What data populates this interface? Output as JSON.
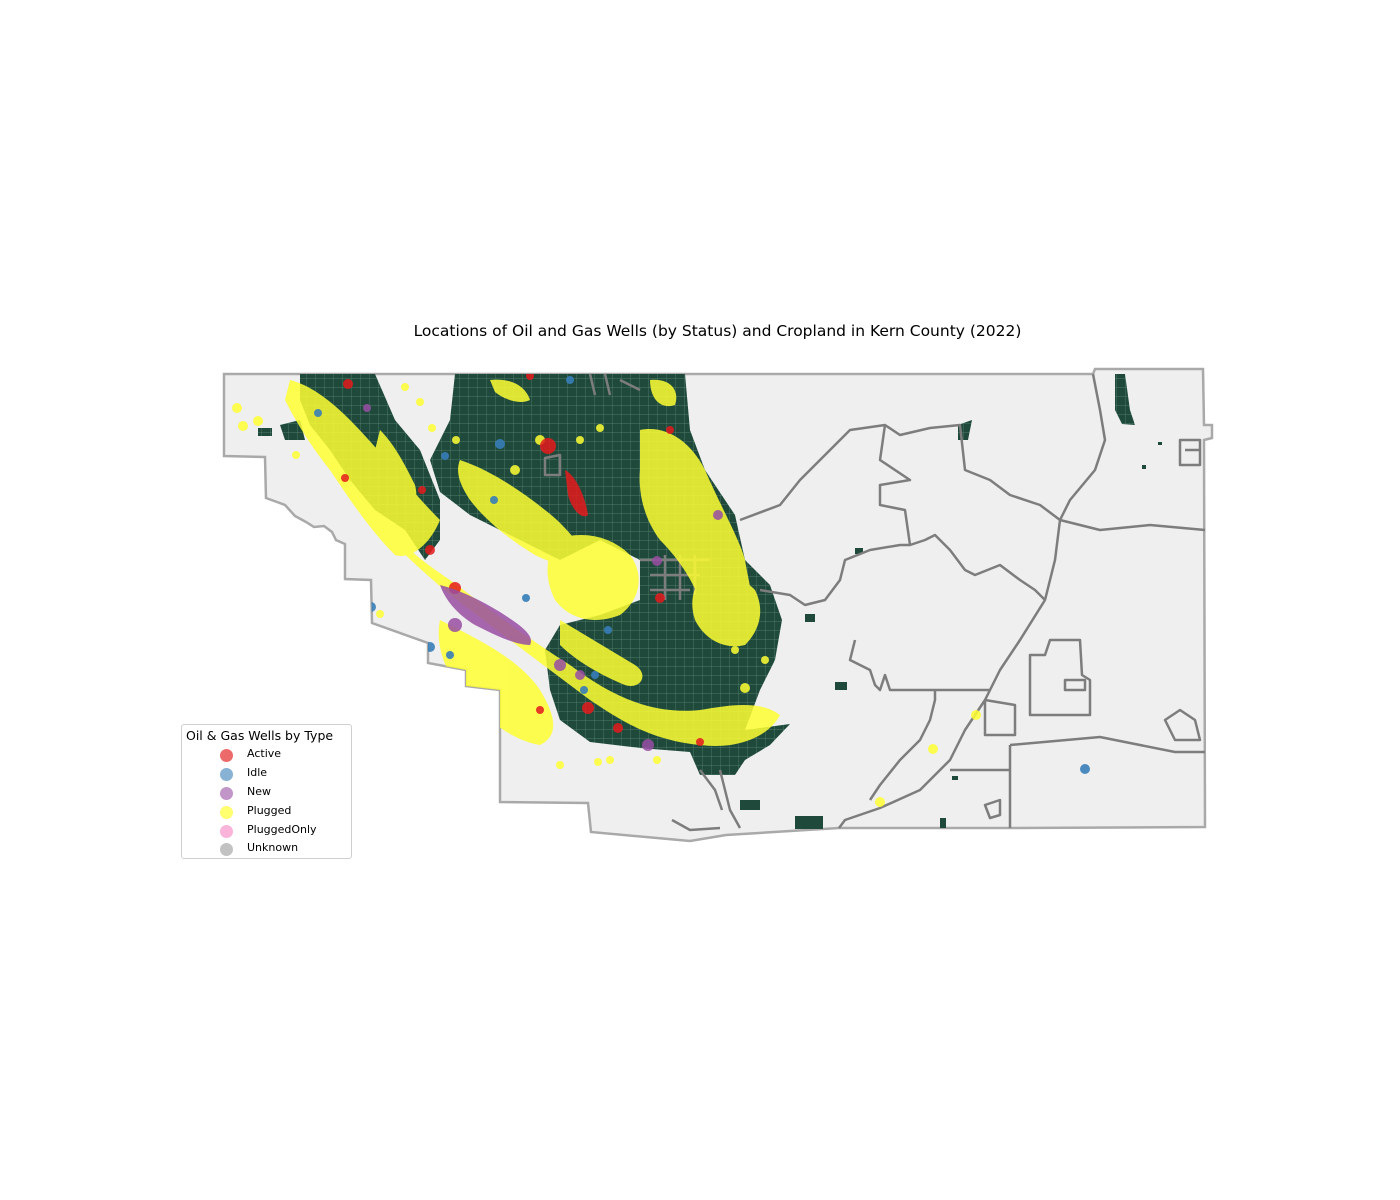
{
  "map": {
    "title": "Locations of Oil and Gas Wells (by Status) and Cropland in Kern County (2022)",
    "colors": {
      "county_fill": "#efefef",
      "county_outline": "#a9a9a9",
      "district_lines": "#808080",
      "cropland": "#1f4a3b"
    }
  },
  "legend": {
    "title": "Oil & Gas Wells by Type",
    "items": [
      {
        "label": "Active",
        "color": "#e41a1c"
      },
      {
        "label": "Idle",
        "color": "#377eb8"
      },
      {
        "label": "New",
        "color": "#984ea3"
      },
      {
        "label": "Plugged",
        "color": "#ffff33"
      },
      {
        "label": "PluggedOnly",
        "color": "#f781bf"
      },
      {
        "label": "Unknown",
        "color": "#999999"
      }
    ]
  }
}
